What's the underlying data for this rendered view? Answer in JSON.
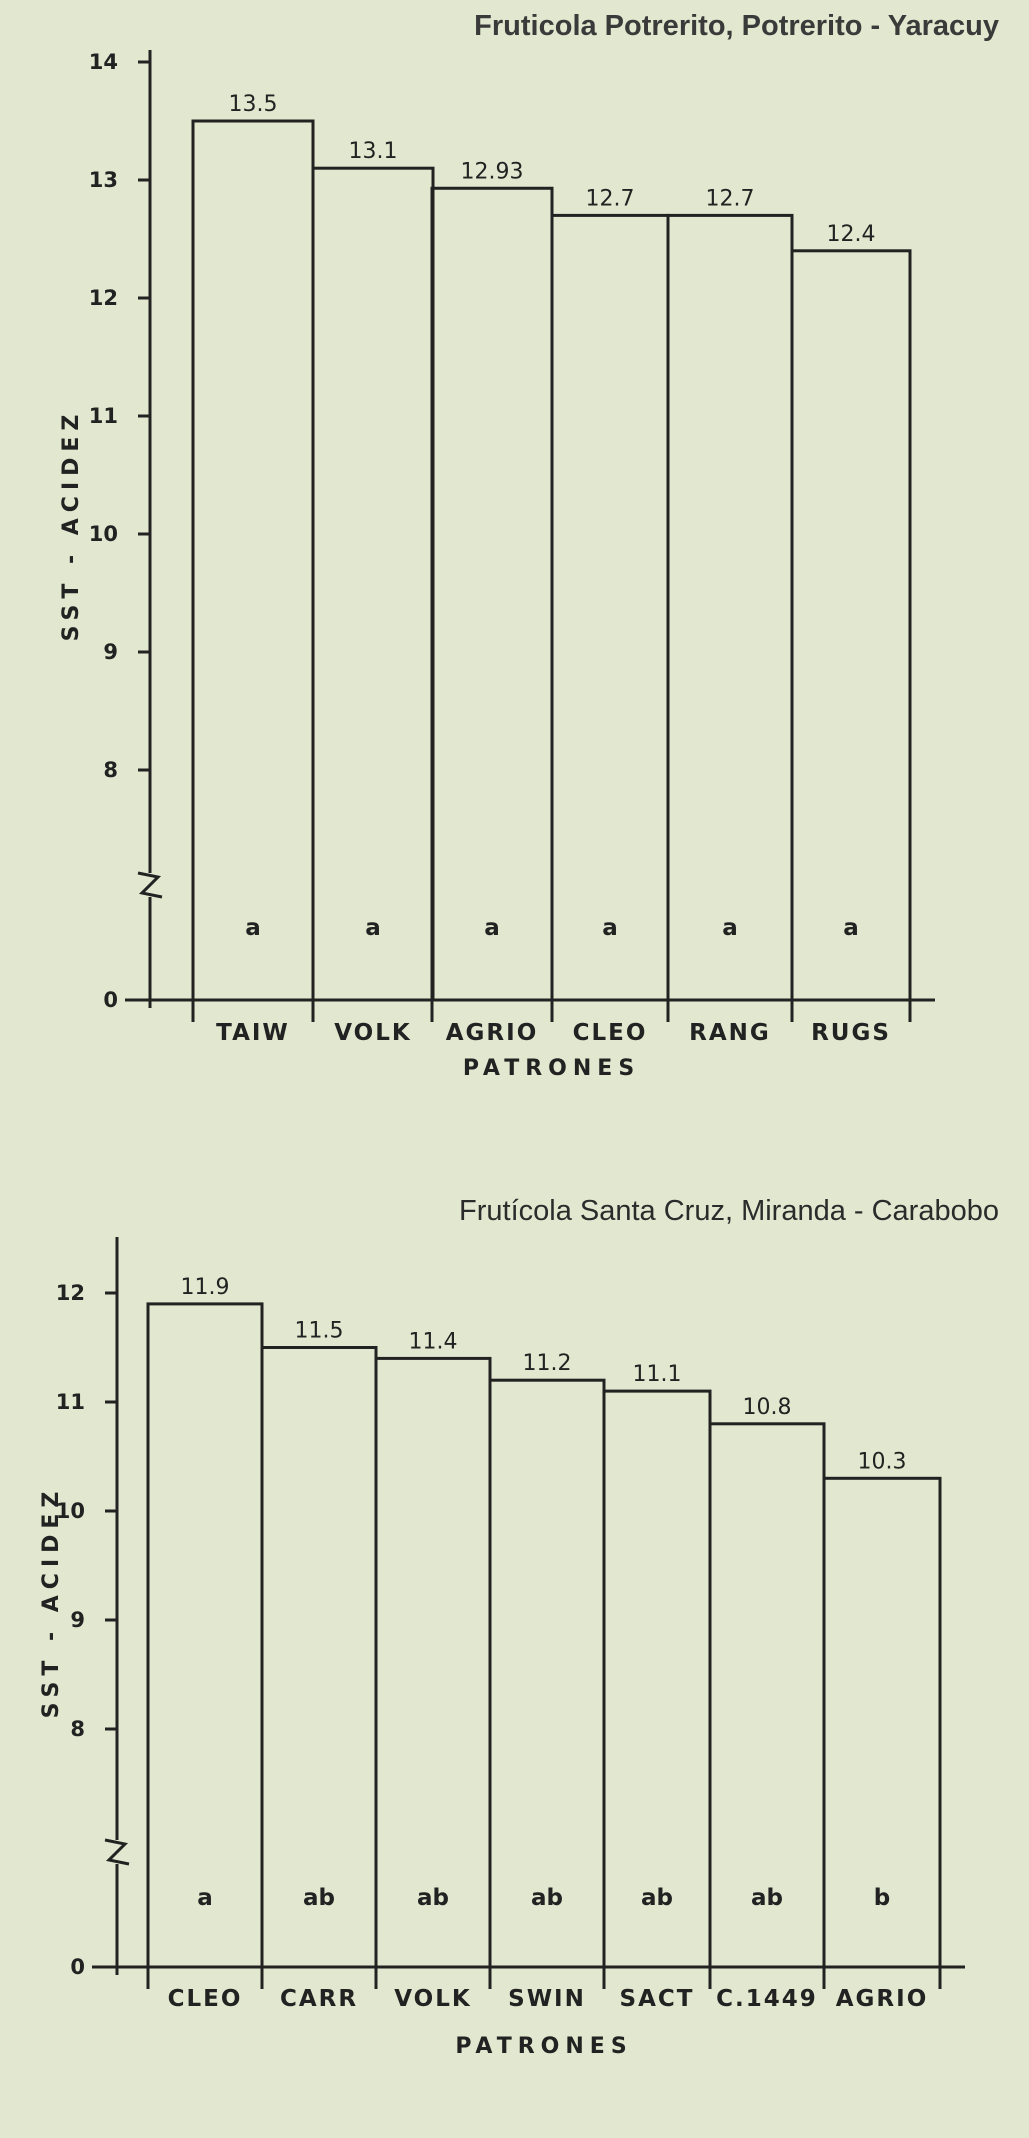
{
  "chart_data": [
    {
      "type": "bar",
      "title": "Fruticola Potrerito, Potrerito - Yaracuy",
      "xlabel": "PATRONES",
      "ylabel": "SST - ACIDEZ",
      "categories": [
        "TAIW",
        "VOLK",
        "AGRIO",
        "CLEO",
        "RANG",
        "RUGS"
      ],
      "values": [
        13.5,
        13.1,
        12.93,
        12.7,
        12.7,
        12.4
      ],
      "value_labels": [
        "13.5",
        "13.1",
        "12.93",
        "12.7",
        "12.7",
        "12.4"
      ],
      "significance": [
        "a",
        "a",
        "a",
        "a",
        "a",
        "a"
      ],
      "yticks": [
        "0",
        "8",
        "9",
        "10",
        "11",
        "12",
        "13",
        "14"
      ],
      "ylim": [
        0,
        14
      ],
      "axis_break": true,
      "grid": false
    },
    {
      "type": "bar",
      "title": "Frutícola Santa Cruz, Miranda - Carabobo",
      "xlabel": "PATRONES",
      "ylabel": "SST - ACIDEZ",
      "categories": [
        "CLEO",
        "CARR",
        "VOLK",
        "SWIN",
        "SACT",
        "C.1449",
        "AGRIO"
      ],
      "values": [
        11.9,
        11.5,
        11.4,
        11.2,
        11.1,
        10.8,
        10.3
      ],
      "value_labels": [
        "11.9",
        "11.5",
        "11.4",
        "11.2",
        "11.1",
        "10.8",
        "10.3"
      ],
      "significance": [
        "a",
        "ab",
        "ab",
        "ab",
        "ab",
        "ab",
        "b"
      ],
      "yticks": [
        "0",
        "8",
        "9",
        "10",
        "11",
        "12"
      ],
      "ylim": [
        0,
        12
      ],
      "axis_break": true,
      "grid": false
    }
  ]
}
